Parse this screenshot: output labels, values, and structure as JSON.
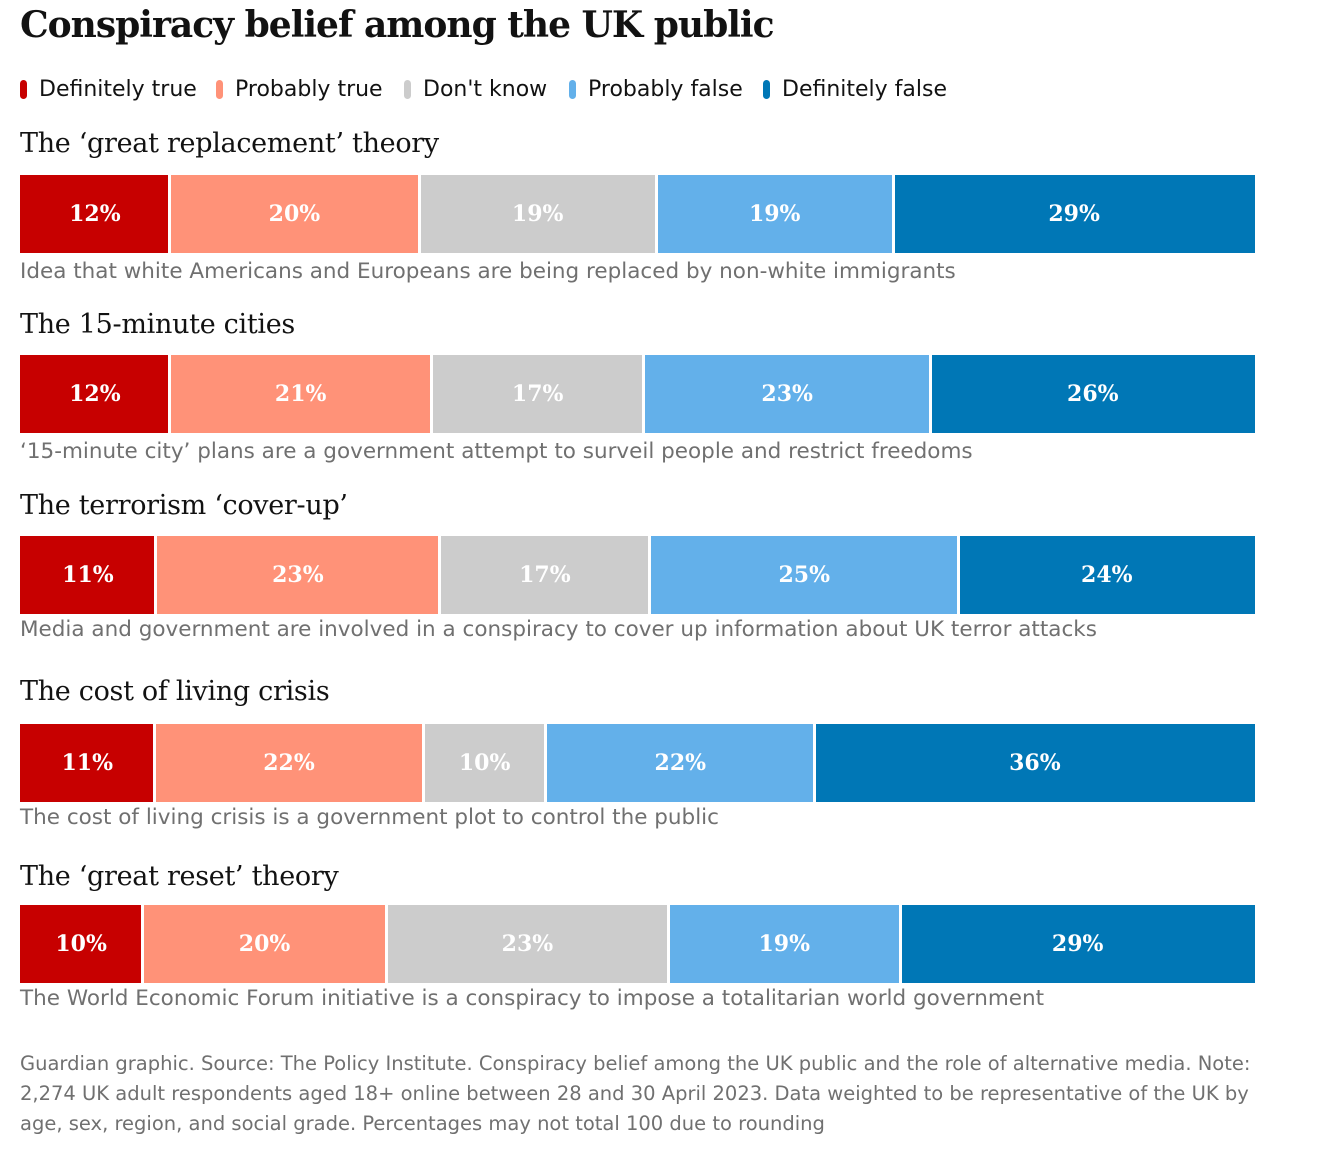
{
  "title": "Conspiracy belief among the UK public",
  "legend": [
    {
      "label": "Definitely true",
      "color": "#c70000"
    },
    {
      "label": "Probably true",
      "color": "#ff9278"
    },
    {
      "label": "Don't know",
      "color": "#cccccc"
    },
    {
      "label": "Probably false",
      "color": "#63b0ea"
    },
    {
      "label": "Definitely false",
      "color": "#0077b6"
    }
  ],
  "chart_data": {
    "type": "bar",
    "stacked": true,
    "orientation": "horizontal",
    "series": [
      {
        "name": "Definitely true",
        "color": "#c70000",
        "values": [
          12,
          12,
          11,
          11,
          10
        ]
      },
      {
        "name": "Probably true",
        "color": "#ff9278",
        "values": [
          20,
          21,
          23,
          22,
          20
        ]
      },
      {
        "name": "Don't know",
        "color": "#cccccc",
        "values": [
          19,
          17,
          17,
          10,
          23
        ]
      },
      {
        "name": "Probably false",
        "color": "#63b0ea",
        "values": [
          19,
          23,
          25,
          22,
          19
        ]
      },
      {
        "name": "Definitely false",
        "color": "#0077b6",
        "values": [
          29,
          26,
          24,
          36,
          29
        ]
      }
    ],
    "rows": [
      {
        "title": "The ‘great replacement’ theory",
        "description": "Idea that white Americans and Europeans are being replaced by non-white immigrants",
        "values": [
          12,
          20,
          19,
          19,
          29
        ],
        "labels": [
          "12%",
          "20%",
          "19%",
          "19%",
          "29%"
        ]
      },
      {
        "title": "The 15-minute cities",
        "description": "‘15-minute city’ plans are a government attempt to surveil people and restrict freedoms",
        "values": [
          12,
          21,
          17,
          23,
          26
        ],
        "labels": [
          "12%",
          "21%",
          "17%",
          "23%",
          "26%"
        ]
      },
      {
        "title": "The terrorism ‘cover-up’",
        "description": "Media and government are involved in a conspiracy to cover up information about UK terror attacks",
        "values": [
          11,
          23,
          17,
          25,
          24
        ],
        "labels": [
          "11%",
          "23%",
          "17%",
          "25%",
          "24%"
        ]
      },
      {
        "title": "The cost of living crisis",
        "description": "The cost of living crisis is a government plot to control the public",
        "values": [
          11,
          22,
          10,
          22,
          36
        ],
        "labels": [
          "11%",
          "22%",
          "10%",
          "22%",
          "36%"
        ]
      },
      {
        "title": "The ‘great reset’ theory",
        "description": "The World Economic Forum initiative is a conspiracy to impose a totalitarian world government",
        "values": [
          10,
          20,
          23,
          19,
          29
        ],
        "labels": [
          "10%",
          "20%",
          "23%",
          "19%",
          "29%"
        ]
      }
    ]
  },
  "footnote": "Guardian graphic. Source: The Policy Institute. Conspiracy belief among the UK public and the role of alternative media. Note: 2,274 UK adult respondents aged 18+ online between 28 and 30 April 2023. Data weighted to be representative of the UK by age, sex, region, and social grade. Percentages may not total 100 due to rounding"
}
